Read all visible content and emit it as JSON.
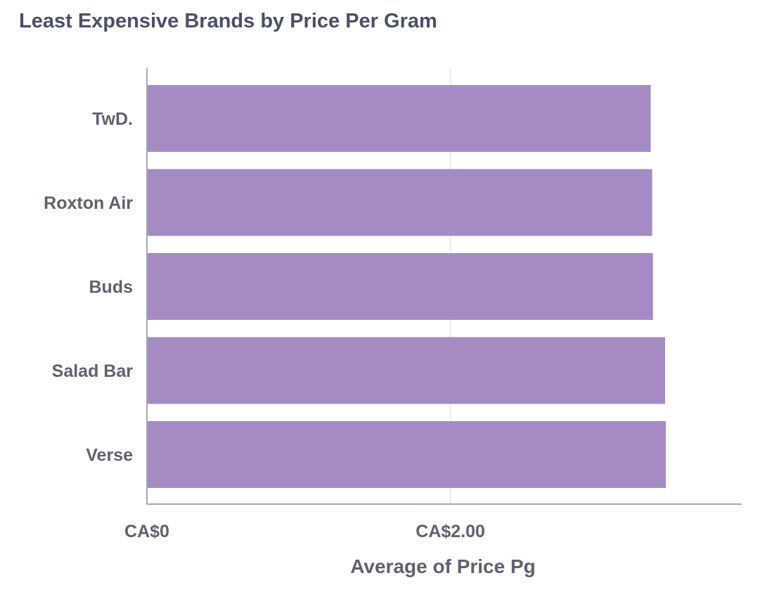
{
  "chart_data": {
    "type": "bar",
    "orientation": "horizontal",
    "title": "Least Expensive Brands by Price Per Gram",
    "xlabel": "Average of Price Pg",
    "ylabel": "",
    "categories": [
      "TwD.",
      "Roxton Air",
      "Buds",
      "Salad Bar",
      "Verse"
    ],
    "values": [
      3.32,
      3.33,
      3.335,
      3.415,
      3.42
    ],
    "xlim": [
      0,
      3.92
    ],
    "xticks": [
      {
        "value": 0,
        "label": "CA$0"
      },
      {
        "value": 2,
        "label": "CA$2.00"
      }
    ],
    "grid": "vertical",
    "legend": "none",
    "bar_color": "#a58bc3",
    "axis_color": "#a3a7b5",
    "grid_color": "#e6e7ec"
  }
}
